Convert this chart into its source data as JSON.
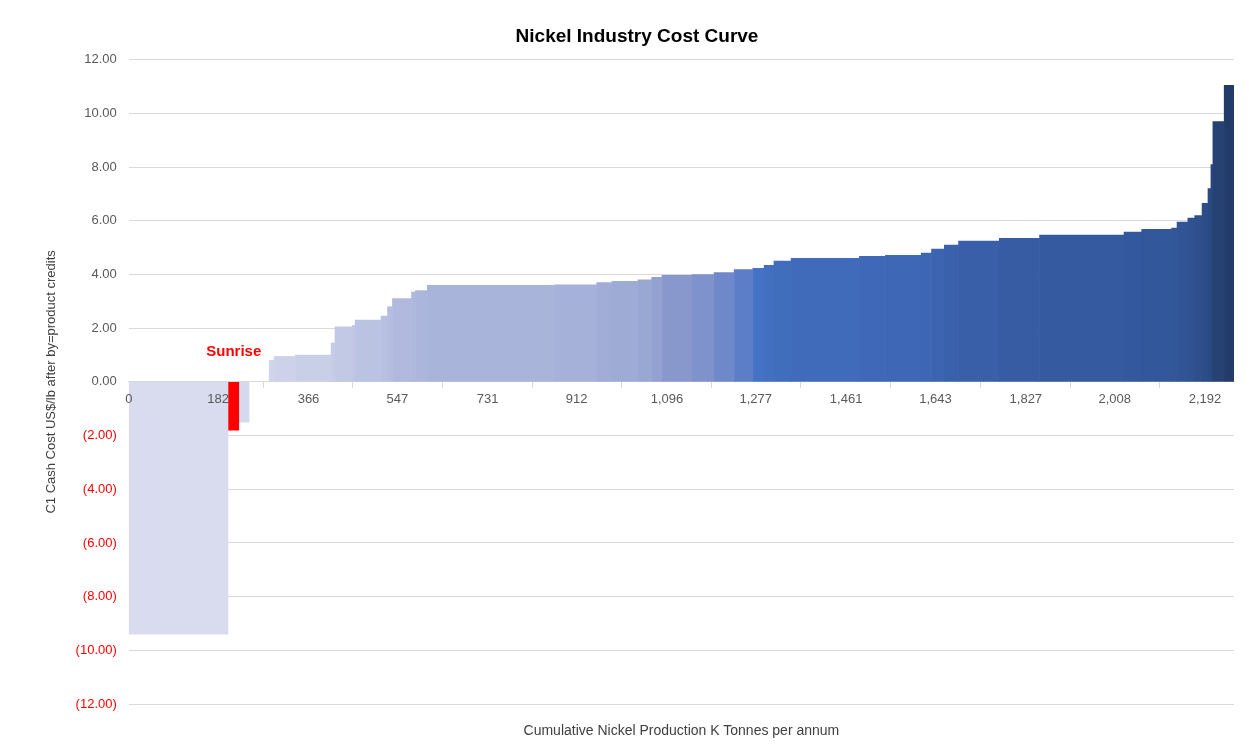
{
  "chart_data": {
    "type": "histogram",
    "title": "Nickel Industry Cost Curve",
    "xlabel": "Cumulative Nickel Production K Tonnes per annum",
    "ylabel": "C1 Cash Cost US$/lb after by=product credits",
    "bins": [
      0,
      202,
      224,
      245,
      286,
      296,
      339,
      412,
      420,
      455,
      461,
      514,
      527,
      537,
      576,
      584,
      608,
      867,
      953,
      984,
      1037,
      1065,
      1086,
      1147,
      1192,
      1233,
      1271,
      1294,
      1314,
      1349,
      1488,
      1541,
      1614,
      1635,
      1661,
      1690,
      1773,
      1855,
      2027,
      2063,
      2124,
      2135,
      2157,
      2171,
      2186,
      2198,
      2204,
      2208,
      2231,
      2251
    ],
    "values": [
      -9.4,
      -1.8,
      -1.5,
      null,
      0.8,
      0.95,
      1.0,
      1.45,
      2.05,
      2.1,
      2.3,
      2.45,
      2.8,
      3.1,
      3.35,
      3.4,
      3.6,
      3.62,
      3.7,
      3.75,
      3.8,
      3.9,
      3.97,
      4.0,
      4.07,
      4.18,
      4.23,
      4.34,
      4.5,
      4.6,
      4.68,
      4.72,
      4.8,
      4.95,
      5.1,
      5.25,
      5.35,
      5.47,
      5.58,
      5.68,
      5.73,
      5.95,
      6.1,
      6.2,
      6.65,
      7.2,
      8.1,
      9.7,
      11.05
    ],
    "colors": [
      "#d9dcee",
      "#ff0000",
      "#d5d9ed",
      "#ffffff",
      "#d0d5eb",
      "#cdd2ea",
      "#cacfe8",
      "#c6cce7",
      "#c2c9e5",
      "#bfc6e4",
      "#bbc3e2",
      "#b8c0e1",
      "#b5bde0",
      "#b1bade",
      "#aeb7dc",
      "#acb5db",
      "#a9b4da",
      "#a5b1d8",
      "#a1add6",
      "#9eabd5",
      "#99a7d3",
      "#93a2d1",
      "#8898cd",
      "#7e92cb",
      "#6f88c9",
      "#5c7ec8",
      "#4472c4",
      "#426fc0",
      "#416dbd",
      "#406bba",
      "#3f69b8",
      "#3e68b6",
      "#3d66b3",
      "#3c64b0",
      "#3a62ac",
      "#395fa8",
      "#375ca4",
      "#355aa0",
      "#34589d",
      "#33579b",
      "#325698",
      "#315494",
      "#305291",
      "#2f508d",
      "#2d4d88",
      "#2b4a83",
      "#29467c",
      "#264273",
      "#223b69"
    ],
    "xlim": [
      0,
      2251
    ],
    "xticks": [
      0,
      182,
      366,
      547,
      731,
      912,
      {
        "value": 1096,
        "label": "1,096"
      },
      {
        "value": 1277,
        "label": "1,277"
      },
      {
        "value": 1461,
        "label": "1,461"
      },
      {
        "value": 1643,
        "label": "1,643"
      },
      {
        "value": 1827,
        "label": "1,827"
      },
      {
        "value": 2008,
        "label": "2,008"
      },
      {
        "value": 2192,
        "label": "2,192"
      }
    ],
    "ylim": [
      -12,
      12
    ],
    "yticks": [
      {
        "value": -12,
        "label": "(12.00)"
      },
      {
        "value": -10,
        "label": "(10.00)"
      },
      {
        "value": -8,
        "label": "(8.00)"
      },
      {
        "value": -6,
        "label": "(6.00)"
      },
      {
        "value": -4,
        "label": "(4.00)"
      },
      {
        "value": -2,
        "label": "(2.00)"
      },
      {
        "value": 0,
        "label": "0.00"
      },
      {
        "value": 2,
        "label": "2.00"
      },
      {
        "value": 4,
        "label": "4.00"
      },
      {
        "value": 6,
        "label": "6.00"
      },
      {
        "value": 8,
        "label": "8.00"
      },
      {
        "value": 10,
        "label": "10.00"
      },
      {
        "value": 12,
        "label": "12.00"
      }
    ],
    "annotations": [
      "Sunrise"
    ],
    "grid": "y",
    "legend": false
  }
}
